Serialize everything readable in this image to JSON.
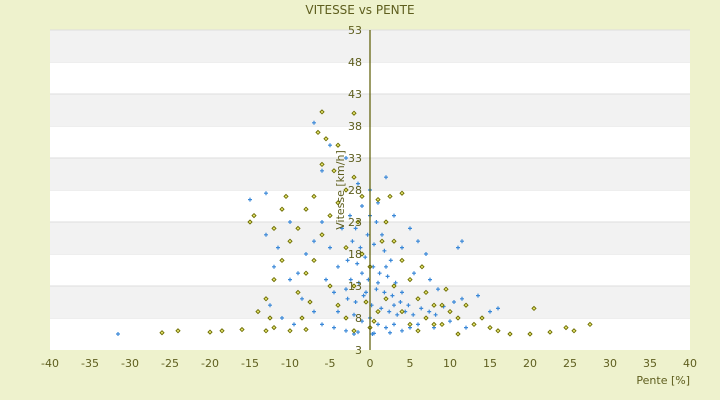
{
  "chart_data": {
    "type": "scatter",
    "title": "VITESSE vs PENTE",
    "xlabel": "Pente [%]",
    "ylabel": "Vitesse [km/h]",
    "xlim": [
      -40,
      40
    ],
    "ylim": [
      3,
      53
    ],
    "xticks": [
      -40,
      -35,
      -30,
      -25,
      -20,
      -15,
      -10,
      -5,
      0,
      5,
      10,
      15,
      20,
      25,
      30,
      35,
      40
    ],
    "yticks": [
      3,
      8,
      13,
      18,
      23,
      28,
      33,
      38,
      43,
      48,
      53
    ],
    "grid": "alternating horizontal bands",
    "legend": "none",
    "colors": {
      "background": "#eef2cd",
      "plot": "#ffffff",
      "band": "#f2f2f2",
      "axis": "#5b5b00",
      "series_blue": "#3a88d8",
      "series_olive": "#6b6b00"
    },
    "series": [
      {
        "marker": "plus",
        "color": "#3a88d8",
        "points": [
          [
            -2.5,
            24
          ],
          [
            -1.8,
            22
          ],
          [
            -1,
            25.5
          ],
          [
            0,
            24
          ],
          [
            0.8,
            23
          ],
          [
            1.5,
            21
          ],
          [
            -2.2,
            20
          ],
          [
            -1.2,
            19
          ],
          [
            -0.3,
            21
          ],
          [
            0.5,
            19.5
          ],
          [
            1.8,
            18.5
          ],
          [
            2.6,
            17
          ],
          [
            -2.8,
            17
          ],
          [
            -1.6,
            16.5
          ],
          [
            -0.6,
            17.5
          ],
          [
            0.4,
            16
          ],
          [
            1.2,
            15
          ],
          [
            2.2,
            14.5
          ],
          [
            3.2,
            13.5
          ],
          [
            -2.4,
            14
          ],
          [
            -1.4,
            13.5
          ],
          [
            -0.2,
            14
          ],
          [
            0.8,
            12.5
          ],
          [
            1.8,
            12
          ],
          [
            2.8,
            11.5
          ],
          [
            3.8,
            10.5
          ],
          [
            4.8,
            10
          ],
          [
            -2.8,
            11
          ],
          [
            -1.8,
            10.5
          ],
          [
            -0.8,
            11.5
          ],
          [
            0.2,
            10
          ],
          [
            1.4,
            9.5
          ],
          [
            2.4,
            9
          ],
          [
            3.4,
            8.5
          ],
          [
            4.4,
            9
          ],
          [
            5.4,
            8.5
          ],
          [
            6.4,
            9.5
          ],
          [
            7.4,
            9
          ],
          [
            8.2,
            8.5
          ],
          [
            9.2,
            9.8
          ],
          [
            10.5,
            10.5
          ],
          [
            11.5,
            11
          ],
          [
            -2,
            8.5
          ],
          [
            -1,
            7.5
          ],
          [
            0,
            8
          ],
          [
            1,
            7
          ],
          [
            2,
            6.5
          ],
          [
            3,
            7
          ],
          [
            4,
            6
          ],
          [
            5,
            6.5
          ],
          [
            6,
            7
          ],
          [
            -3,
            6
          ],
          [
            -1.5,
            5.8
          ],
          [
            0.5,
            5.6
          ],
          [
            2.5,
            5.7
          ],
          [
            -4,
            9
          ],
          [
            -4.5,
            12
          ],
          [
            -4,
            16
          ],
          [
            -5,
            19
          ],
          [
            -3.5,
            22
          ],
          [
            -6,
            23
          ],
          [
            -7,
            20
          ],
          [
            -8,
            18
          ],
          [
            -9,
            15
          ],
          [
            -10,
            14
          ],
          [
            -8.5,
            11
          ],
          [
            -7,
            9
          ],
          [
            -6,
            7
          ],
          [
            -11.5,
            19
          ],
          [
            -13,
            21
          ],
          [
            -12,
            16
          ],
          [
            -15,
            26.5
          ],
          [
            -13,
            27.5
          ],
          [
            -10,
            23
          ],
          [
            -6,
            31
          ],
          [
            -5,
            35
          ],
          [
            -7,
            38.5
          ],
          [
            -3,
            33
          ],
          [
            -1.5,
            29
          ],
          [
            2,
            30
          ],
          [
            5,
            22
          ],
          [
            6,
            20
          ],
          [
            7,
            18
          ],
          [
            5.5,
            15
          ],
          [
            7.5,
            14
          ],
          [
            8.5,
            12.5
          ],
          [
            11.5,
            20
          ],
          [
            11,
            19
          ],
          [
            13.5,
            11.5
          ],
          [
            15,
            9
          ],
          [
            16,
            9.5
          ],
          [
            -31.5,
            5.5
          ],
          [
            -2,
            5.5
          ],
          [
            1,
            26
          ],
          [
            3,
            24
          ],
          [
            4,
            19
          ],
          [
            0,
            28
          ],
          [
            -0.5,
            12
          ],
          [
            1,
            13.5
          ],
          [
            2,
            16
          ],
          [
            -1,
            15
          ],
          [
            3,
            10
          ],
          [
            4,
            12
          ],
          [
            -3,
            12.5
          ],
          [
            -5.5,
            14
          ],
          [
            -4.5,
            6.5
          ],
          [
            8,
            6.5
          ],
          [
            10,
            7.5
          ],
          [
            12,
            6.5
          ],
          [
            0.3,
            5.5
          ],
          [
            -9.5,
            7
          ],
          [
            -12.5,
            10
          ],
          [
            -11,
            8
          ]
        ]
      },
      {
        "marker": "diamond",
        "color": "#6b6b00",
        "points": [
          [
            -24,
            6
          ],
          [
            -20,
            5.8
          ],
          [
            -18.5,
            6
          ],
          [
            -16,
            6.2
          ],
          [
            -13,
            6
          ],
          [
            -12,
            6.5
          ],
          [
            -10,
            6
          ],
          [
            -8,
            6.2
          ],
          [
            17.5,
            5.5
          ],
          [
            20,
            5.5
          ],
          [
            22.5,
            5.8
          ],
          [
            24.5,
            6.5
          ],
          [
            25.5,
            6
          ],
          [
            27.5,
            7
          ],
          [
            20.5,
            9.5
          ],
          [
            15,
            6.5
          ],
          [
            13,
            7
          ],
          [
            11,
            8
          ],
          [
            9,
            10
          ],
          [
            8,
            7
          ],
          [
            7,
            12
          ],
          [
            6,
            11
          ],
          [
            5,
            14
          ],
          [
            4,
            17
          ],
          [
            3,
            20
          ],
          [
            2,
            23
          ],
          [
            1,
            26.5
          ],
          [
            -1,
            27
          ],
          [
            -2,
            30
          ],
          [
            -3,
            28
          ],
          [
            -4,
            26
          ],
          [
            -5,
            24
          ],
          [
            -6,
            32
          ],
          [
            -6.5,
            37
          ],
          [
            -5.5,
            36
          ],
          [
            -4,
            35
          ],
          [
            -2,
            40
          ],
          [
            -6,
            40.2
          ],
          [
            -4.5,
            31
          ],
          [
            -7,
            27
          ],
          [
            -8,
            25
          ],
          [
            -9,
            22
          ],
          [
            -10,
            20
          ],
          [
            -11,
            17
          ],
          [
            -12,
            14
          ],
          [
            -13,
            11
          ],
          [
            -12.5,
            8
          ],
          [
            -9,
            12
          ],
          [
            -8,
            15
          ],
          [
            -7,
            17
          ],
          [
            -6,
            21
          ],
          [
            -5,
            13
          ],
          [
            -4,
            10
          ],
          [
            -3,
            8
          ],
          [
            -2,
            6
          ],
          [
            0,
            6.5
          ],
          [
            1,
            9
          ],
          [
            2,
            11
          ],
          [
            3,
            13
          ],
          [
            4,
            9
          ],
          [
            5,
            7
          ],
          [
            6,
            6
          ],
          [
            7,
            8
          ],
          [
            8,
            10
          ],
          [
            9,
            7
          ],
          [
            10,
            9
          ],
          [
            12,
            10
          ],
          [
            -1,
            18
          ],
          [
            0,
            16
          ],
          [
            -2,
            13
          ],
          [
            -3,
            19
          ],
          [
            2.5,
            27
          ],
          [
            4,
            27.5
          ],
          [
            -14.5,
            24
          ],
          [
            -12,
            22
          ],
          [
            -10.5,
            27
          ],
          [
            -15,
            23
          ],
          [
            -11,
            25
          ],
          [
            14,
            8
          ],
          [
            16,
            6
          ],
          [
            -0.5,
            10.5
          ],
          [
            1.5,
            20
          ],
          [
            -1.5,
            23
          ],
          [
            6.5,
            16
          ],
          [
            9.5,
            12.5
          ],
          [
            -8.5,
            8
          ],
          [
            -7.5,
            10.5
          ],
          [
            -14,
            9
          ],
          [
            11,
            5.5
          ],
          [
            0.5,
            7.5
          ],
          [
            -26,
            5.7
          ]
        ]
      }
    ]
  }
}
